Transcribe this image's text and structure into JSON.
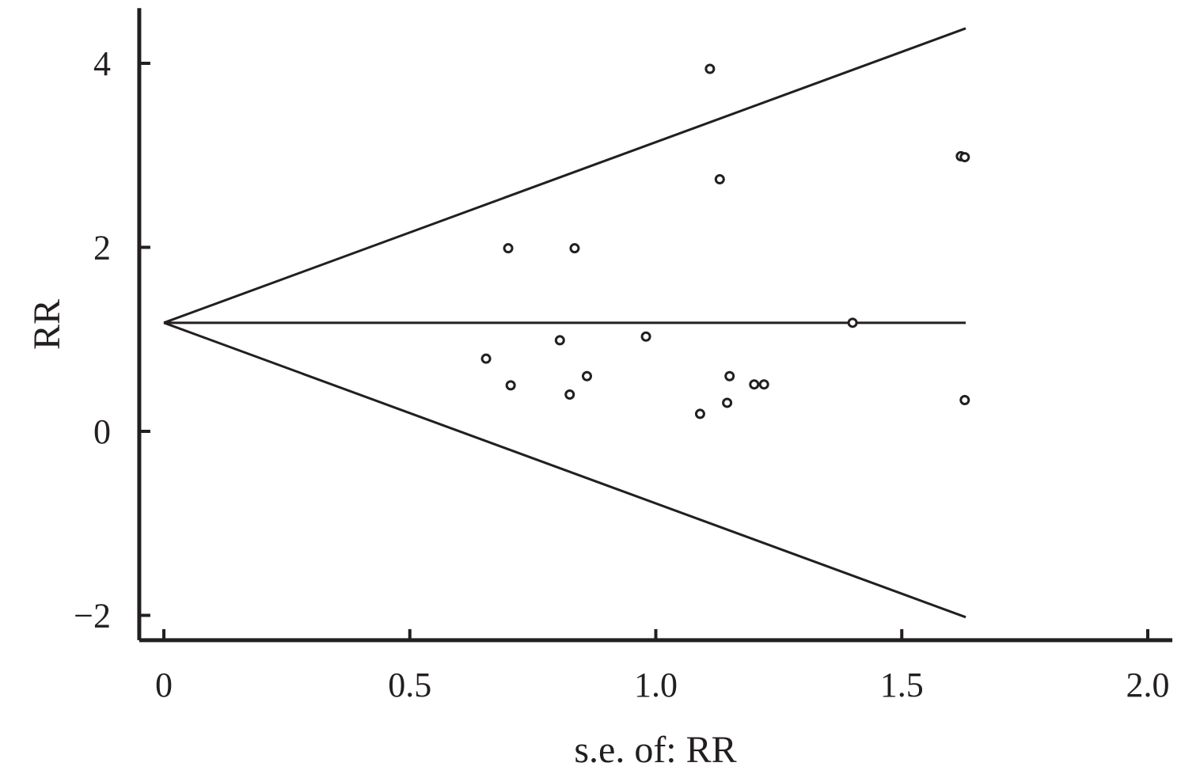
{
  "chart_data": {
    "type": "scatter",
    "title": "",
    "xlabel": "s.e. of: RR",
    "ylabel": "RR",
    "xlim": [
      -0.05,
      2.05
    ],
    "ylim": [
      -2.27,
      4.6
    ],
    "x_ticks": [
      0,
      0.5,
      1.0,
      1.5,
      2.0
    ],
    "x_tick_labels": [
      "0",
      "0.5",
      "1.0",
      "1.5",
      "2.0"
    ],
    "y_ticks": [
      4,
      2,
      0,
      -2
    ],
    "y_tick_labels": [
      "4",
      "2",
      "0",
      "−2"
    ],
    "grid": false,
    "colors": {
      "ink": "#231f20",
      "background": "#ffffff"
    },
    "pooled_estimate": 1.18,
    "funnel": {
      "apex": {
        "x": 0,
        "y": 1.18
      },
      "x_end": 1.63,
      "upper_end": 4.38,
      "lower_end": -2.02,
      "center_end": 1.18
    },
    "points": [
      {
        "x": 0.655,
        "y": 0.79
      },
      {
        "x": 0.7,
        "y": 1.99
      },
      {
        "x": 0.705,
        "y": 0.5
      },
      {
        "x": 0.805,
        "y": 0.99
      },
      {
        "x": 0.825,
        "y": 0.4
      },
      {
        "x": 0.835,
        "y": 1.99
      },
      {
        "x": 0.86,
        "y": 0.6
      },
      {
        "x": 0.98,
        "y": 1.03
      },
      {
        "x": 1.09,
        "y": 0.19
      },
      {
        "x": 1.11,
        "y": 3.94
      },
      {
        "x": 1.13,
        "y": 2.74
      },
      {
        "x": 1.145,
        "y": 0.31
      },
      {
        "x": 1.15,
        "y": 0.6
      },
      {
        "x": 1.2,
        "y": 0.51
      },
      {
        "x": 1.22,
        "y": 0.51
      },
      {
        "x": 1.4,
        "y": 1.18
      },
      {
        "x": 1.62,
        "y": 2.99
      },
      {
        "x": 1.628,
        "y": 2.98
      },
      {
        "x": 1.628,
        "y": 0.34
      }
    ]
  }
}
